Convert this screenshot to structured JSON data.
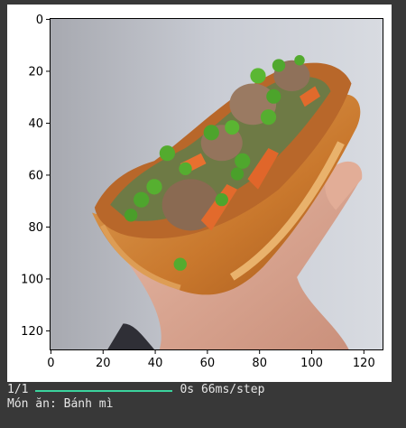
{
  "figure": {
    "image_label": "banh-mi-photo",
    "x_ticks": [
      "0",
      "20",
      "40",
      "60",
      "80",
      "100",
      "120"
    ],
    "y_ticks": [
      "0",
      "20",
      "40",
      "60",
      "80",
      "100",
      "120"
    ],
    "x_range": [
      -0.5,
      127.5
    ],
    "y_range": [
      127.5,
      -0.5
    ]
  },
  "console": {
    "step_count": "1/1",
    "progress": 1.0,
    "progress_color": "#3bd39d",
    "timing": "0s 66ms/step",
    "prediction": "Món ăn: Bánh mì"
  }
}
